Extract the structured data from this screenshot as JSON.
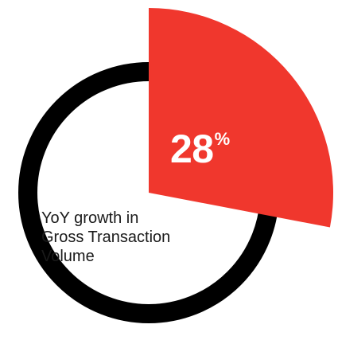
{
  "chart_data": {
    "type": "pie",
    "categories": [
      "YoY growth in Gross Transaction Volume"
    ],
    "values": [
      28
    ],
    "value_label": "28",
    "value_unit": "%",
    "caption_lines": [
      "YoY growth in",
      "Gross Transaction",
      "Volume"
    ],
    "max": 100,
    "colors": {
      "highlight": "#f0372d",
      "ring": "#000000",
      "value_text": "#ffffff",
      "caption_text": "#1a1a1a"
    }
  }
}
